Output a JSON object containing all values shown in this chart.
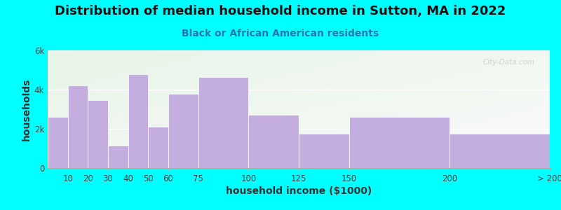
{
  "title": "Distribution of median household income in Sutton, MA in 2022",
  "subtitle": "Black or African American residents",
  "xlabel": "household income ($1000)",
  "ylabel": "households",
  "background_outer": "#00FFFF",
  "bar_color": "#C4AEE0",
  "watermark": "City-Data.com",
  "bar_edges": [
    0,
    10,
    20,
    30,
    40,
    50,
    60,
    75,
    100,
    125,
    150,
    200,
    250
  ],
  "bar_labels": [
    "10",
    "20",
    "30",
    "40",
    "50",
    "60",
    "75",
    "100",
    "125",
    "150",
    "200",
    "> 200"
  ],
  "values": [
    2600,
    4200,
    3450,
    1150,
    4800,
    2100,
    3800,
    4650,
    2700,
    1750,
    2600,
    1750
  ],
  "ylim": [
    0,
    6000
  ],
  "ytick_vals": [
    0,
    2000,
    4000,
    6000
  ],
  "ytick_labels": [
    "0",
    "2k",
    "4k",
    "6k"
  ],
  "xlim": [
    0,
    250
  ],
  "xtick_positions": [
    10,
    20,
    30,
    40,
    50,
    60,
    75,
    100,
    125,
    150,
    200,
    250
  ],
  "xtick_labels": [
    "10",
    "20",
    "30",
    "40",
    "50",
    "60",
    "75",
    "100",
    "125",
    "150",
    "200",
    "> 200"
  ],
  "title_fontsize": 13,
  "subtitle_fontsize": 10,
  "axis_label_fontsize": 10,
  "tick_fontsize": 8.5
}
